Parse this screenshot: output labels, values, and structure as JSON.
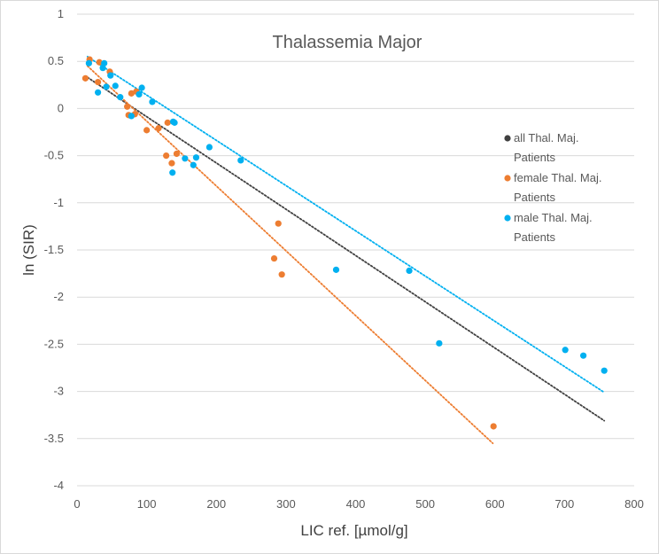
{
  "chart_data": {
    "type": "scatter",
    "title": "Thalassemia Major",
    "xlabel": "LIC ref. [µmol/g]",
    "ylabel": "ln (SIR)",
    "xlim": [
      0,
      800
    ],
    "ylim": [
      -4,
      1
    ],
    "xticks": [
      0,
      100,
      200,
      300,
      400,
      500,
      600,
      700,
      800
    ],
    "yticks": [
      1,
      0.5,
      0,
      -0.5,
      -1,
      -1.5,
      -2,
      -2.5,
      -3,
      -3.5,
      -4
    ],
    "grid": "horizontal",
    "legend_position": "right",
    "series": [
      {
        "name": "all Thal. Maj. Patients",
        "legend_lines": [
          "all Thal. Maj.",
          "Patients"
        ],
        "color": "#404040",
        "marker": "dot",
        "points": [],
        "trendline": {
          "x": [
            15,
            757
          ],
          "y": [
            0.33,
            -3.31
          ]
        }
      },
      {
        "name": "female Thal. Maj. Patients",
        "legend_lines": [
          "female Thal. Maj.",
          "Patients"
        ],
        "color": "#ED7D31",
        "marker": "circle",
        "points": [
          [
            12,
            0.32
          ],
          [
            18,
            0.52
          ],
          [
            30,
            0.28
          ],
          [
            32,
            0.49
          ],
          [
            47,
            0.39
          ],
          [
            72,
            0.02
          ],
          [
            74,
            -0.07
          ],
          [
            78,
            0.16
          ],
          [
            83,
            -0.06
          ],
          [
            85,
            0.18
          ],
          [
            100,
            -0.23
          ],
          [
            117,
            -0.21
          ],
          [
            128,
            -0.5
          ],
          [
            130,
            -0.15
          ],
          [
            136,
            -0.58
          ],
          [
            143,
            -0.48
          ],
          [
            283,
            -1.59
          ],
          [
            289,
            -1.22
          ],
          [
            294,
            -1.76
          ],
          [
            598,
            -3.37
          ]
        ],
        "trendline": {
          "x": [
            15,
            597
          ],
          "y": [
            0.45,
            -3.55
          ]
        }
      },
      {
        "name": "male Thal. Maj. Patients",
        "legend_lines": [
          "male Thal. Maj.",
          "Patients"
        ],
        "color": "#00B0F0",
        "marker": "circle",
        "points": [
          [
            17,
            0.48
          ],
          [
            30,
            0.17
          ],
          [
            37,
            0.43
          ],
          [
            39,
            0.48
          ],
          [
            42,
            0.23
          ],
          [
            48,
            0.35
          ],
          [
            55,
            0.24
          ],
          [
            62,
            0.12
          ],
          [
            78,
            -0.08
          ],
          [
            89,
            0.15
          ],
          [
            93,
            0.22
          ],
          [
            108,
            0.07
          ],
          [
            137,
            -0.68
          ],
          [
            138,
            -0.14
          ],
          [
            140,
            -0.15
          ],
          [
            155,
            -0.53
          ],
          [
            167,
            -0.6
          ],
          [
            171,
            -0.52
          ],
          [
            190,
            -0.41
          ],
          [
            235,
            -0.55
          ],
          [
            372,
            -1.71
          ],
          [
            477,
            -1.72
          ],
          [
            520,
            -2.49
          ],
          [
            701,
            -2.56
          ],
          [
            727,
            -2.62
          ],
          [
            757,
            -2.78
          ]
        ],
        "trendline": {
          "x": [
            15,
            757
          ],
          "y": [
            0.55,
            -3.01
          ]
        }
      }
    ]
  }
}
